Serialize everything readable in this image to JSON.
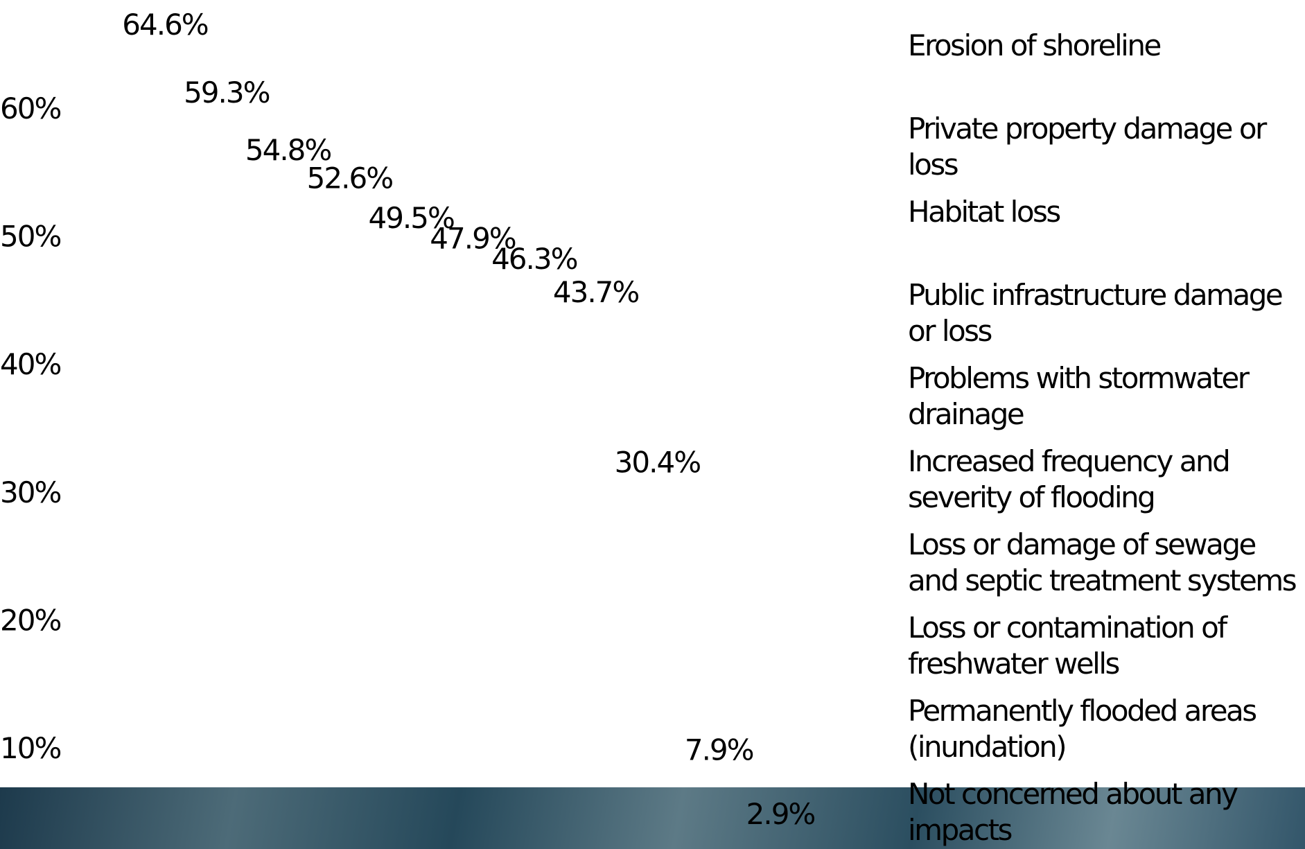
{
  "chart_data": {
    "type": "bar",
    "categories": [
      null,
      "Erosion of shoreline",
      "Private property damage or loss",
      "Habitat loss",
      "Public infrastructure damage or loss",
      "Problems with stormwater drainage",
      "Increased frequency and severity of flooding",
      "Loss or damage of sewage and septic treatment systems",
      "Loss or contamination of freshwater wells",
      "Permanently flooded areas (inundation)",
      "Not concerned about any impacts"
    ],
    "values": [
      64.6,
      59.3,
      54.8,
      52.6,
      49.5,
      47.9,
      46.3,
      43.7,
      30.4,
      7.9,
      2.9
    ],
    "value_labels": [
      "64.6%",
      "59.3%",
      "54.8%",
      "52.6%",
      "49.5%",
      "47.9%",
      "46.3%",
      "43.7%",
      "30.4%",
      "7.9%",
      "2.9%"
    ],
    "ylim": [
      0,
      70
    ],
    "yticks": [
      {
        "value": 10,
        "label": "10%"
      },
      {
        "value": 20,
        "label": "20%"
      },
      {
        "value": 30,
        "label": "30%"
      },
      {
        "value": 40,
        "label": "40%"
      },
      {
        "value": 50,
        "label": "50%"
      },
      {
        "value": 60,
        "label": "60%"
      }
    ],
    "grid": false
  }
}
